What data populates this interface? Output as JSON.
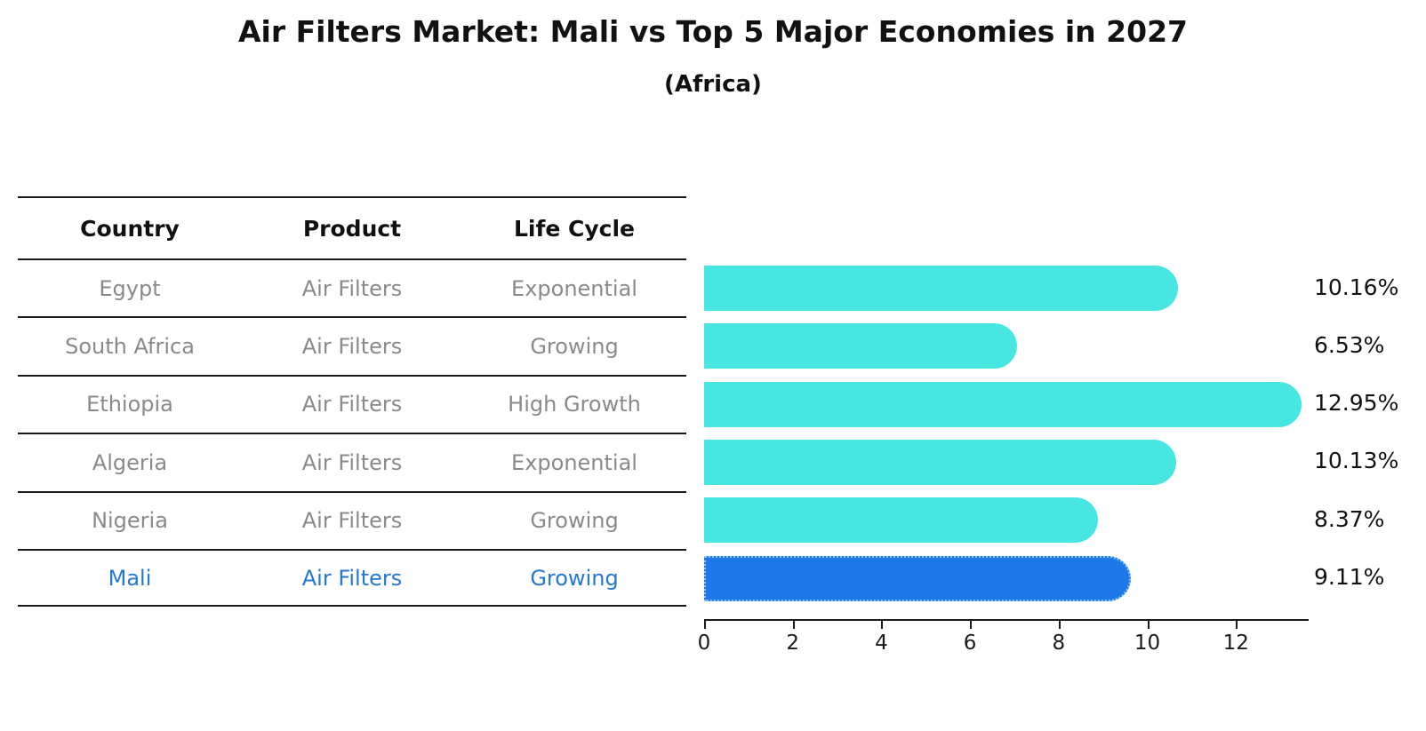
{
  "title": "Air Filters Market: Mali vs Top 5 Major Economies in 2027",
  "subtitle": "(Africa)",
  "table": {
    "headers": [
      "Country",
      "Product",
      "Life Cycle"
    ],
    "rows": [
      {
        "country": "Egypt",
        "product": "Air Filters",
        "life_cycle": "Exponential",
        "highlight": false
      },
      {
        "country": "South Africa",
        "product": "Air Filters",
        "life_cycle": "Growing",
        "highlight": false
      },
      {
        "country": "Ethiopia",
        "product": "Air Filters",
        "life_cycle": "High Growth",
        "highlight": false
      },
      {
        "country": "Algeria",
        "product": "Air Filters",
        "life_cycle": "Exponential",
        "highlight": false
      },
      {
        "country": "Nigeria",
        "product": "Air Filters",
        "life_cycle": "Growing",
        "highlight": false
      },
      {
        "country": "Mali",
        "product": "Air Filters",
        "life_cycle": "Growing",
        "highlight": true
      }
    ]
  },
  "chart_data": {
    "type": "bar",
    "orientation": "horizontal",
    "title": "Air Filters Market: Mali vs Top 5 Major Economies in 2027",
    "subtitle": "(Africa)",
    "categories": [
      "Egypt",
      "South Africa",
      "Ethiopia",
      "Algeria",
      "Nigeria",
      "Mali"
    ],
    "values": [
      10.16,
      6.53,
      12.95,
      10.13,
      8.37,
      9.11
    ],
    "value_labels": [
      "10.16%",
      "6.53%",
      "12.95%",
      "10.13%",
      "8.37%",
      "9.11%"
    ],
    "unit": "%",
    "xlabel": "",
    "ylabel": "",
    "xlim": [
      0,
      13.6
    ],
    "x_ticks": [
      0,
      2,
      4,
      6,
      8,
      10,
      12
    ],
    "grid": false,
    "legend": false,
    "highlight_index": 5
  },
  "colors": {
    "bar_color": "#47E6E0",
    "highlight_bar_color": "#1E78E8",
    "highlight_border_color": "#8CC6F2",
    "row_text": "#8A8A8A",
    "highlight_text": "#2478D2",
    "axis_color": "#1A1A1A"
  }
}
